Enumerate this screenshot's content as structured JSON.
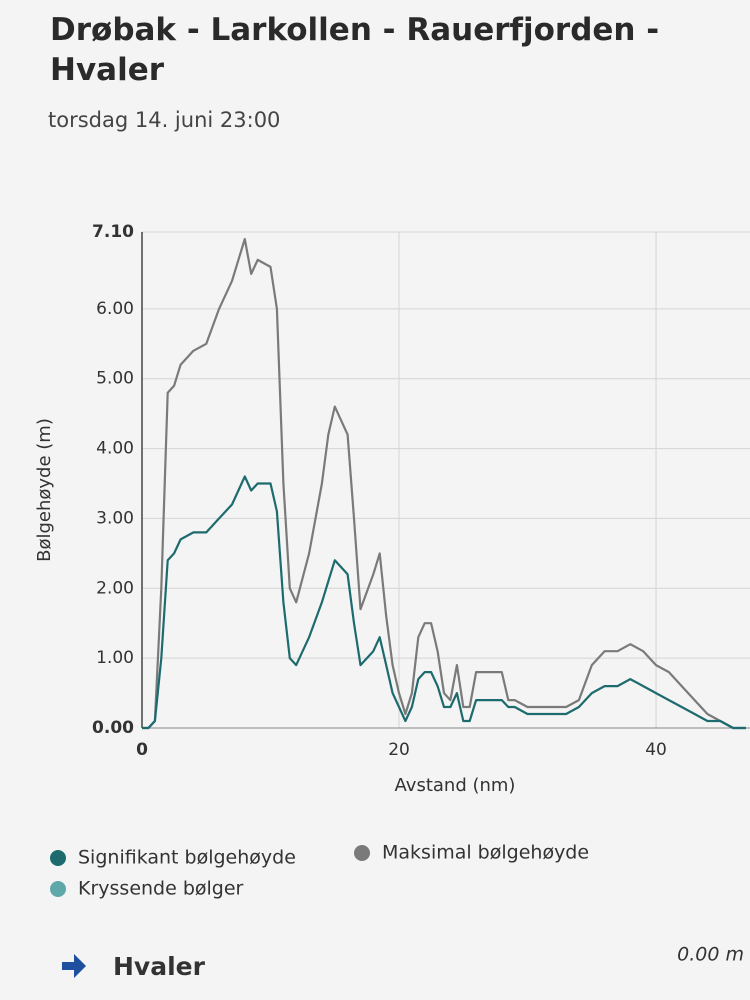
{
  "chart_data": {
    "type": "line",
    "title": "Drøbak - Larkollen - Rauerfjorden - Hvaler",
    "subtitle": "torsdag 14. juni 23:00",
    "x_label": "Avstand (nm)",
    "y_label": "Bølgehøyde (m)",
    "x": [
      0,
      0.5,
      1,
      1.5,
      2,
      2.5,
      3,
      4,
      5,
      6,
      7,
      7.5,
      8,
      8.5,
      9,
      10,
      10.5,
      11,
      11.5,
      12,
      13,
      14,
      14.5,
      15,
      16,
      16.5,
      17,
      18,
      18.5,
      19,
      19.5,
      20,
      20.5,
      21,
      21.5,
      22,
      22.5,
      23,
      23.5,
      24,
      24.5,
      25,
      25.5,
      26,
      27,
      28,
      28.5,
      29,
      30,
      31,
      32,
      33,
      34,
      35,
      36,
      37,
      38,
      39,
      40,
      41,
      42,
      43,
      44,
      45,
      46,
      47
    ],
    "series": [
      {
        "name": "Signifikant bølgehøyde",
        "color": "#1d6b6e",
        "values": [
          0,
          0,
          0.1,
          1.0,
          2.4,
          2.5,
          2.7,
          2.8,
          2.8,
          3.0,
          3.2,
          3.4,
          3.6,
          3.4,
          3.5,
          3.5,
          3.1,
          1.8,
          1.0,
          0.9,
          1.3,
          1.8,
          2.1,
          2.4,
          2.2,
          1.5,
          0.9,
          1.1,
          1.3,
          0.9,
          0.5,
          0.3,
          0.1,
          0.3,
          0.7,
          0.8,
          0.8,
          0.6,
          0.3,
          0.3,
          0.5,
          0.1,
          0.1,
          0.4,
          0.4,
          0.4,
          0.3,
          0.3,
          0.2,
          0.2,
          0.2,
          0.2,
          0.3,
          0.5,
          0.6,
          0.6,
          0.7,
          0.6,
          0.5,
          0.4,
          0.3,
          0.2,
          0.1,
          0.1,
          0,
          0
        ]
      },
      {
        "name": "Maksimal bølgehøyde",
        "color": "#7a7a7a",
        "values": [
          0,
          0,
          0.1,
          2,
          4.8,
          4.9,
          5.2,
          5.4,
          5.5,
          6.0,
          6.4,
          6.7,
          7.0,
          6.5,
          6.7,
          6.6,
          6.0,
          3.5,
          2.0,
          1.8,
          2.5,
          3.5,
          4.2,
          4.6,
          4.2,
          3.0,
          1.7,
          2.2,
          2.5,
          1.6,
          0.9,
          0.5,
          0.2,
          0.5,
          1.3,
          1.5,
          1.5,
          1.1,
          0.5,
          0.4,
          0.9,
          0.3,
          0.3,
          0.8,
          0.8,
          0.8,
          0.4,
          0.4,
          0.3,
          0.3,
          0.3,
          0.3,
          0.4,
          0.9,
          1.1,
          1.1,
          1.2,
          1.1,
          0.9,
          0.8,
          0.6,
          0.4,
          0.2,
          0.1,
          0,
          0
        ]
      },
      {
        "name": "Kryssende bølger",
        "color": "#5fa8aa",
        "values": [
          null,
          null,
          null,
          null,
          null,
          null,
          null,
          null,
          null,
          null,
          null,
          null,
          null,
          null,
          null,
          null,
          null,
          null,
          null,
          null,
          null,
          null,
          null,
          null,
          null,
          null,
          null,
          null,
          null,
          null,
          null,
          null,
          null,
          null,
          null,
          null,
          null,
          null,
          null,
          null,
          null,
          null,
          null,
          null,
          null,
          null,
          null,
          null,
          null,
          null,
          null,
          null,
          null,
          null,
          null,
          null,
          null,
          null,
          null,
          null,
          null,
          null,
          null,
          null,
          null,
          null
        ]
      }
    ],
    "xlim": [
      0,
      47
    ],
    "xticks": [
      0,
      20,
      40
    ],
    "ylim": [
      0,
      7.1
    ],
    "yticks": [
      {
        "value": 0,
        "label": "0.00"
      },
      {
        "value": 1,
        "label": "1.00"
      },
      {
        "value": 2,
        "label": "2.00"
      },
      {
        "value": 3,
        "label": "3.00"
      },
      {
        "value": 4,
        "label": "4.00"
      },
      {
        "value": 5,
        "label": "5.00"
      },
      {
        "value": 6,
        "label": "6.00"
      },
      {
        "value": 7.1,
        "label": "7.10"
      }
    ],
    "grid": true
  },
  "footer": {
    "destination": "Hvaler",
    "value": "0.00 m"
  }
}
